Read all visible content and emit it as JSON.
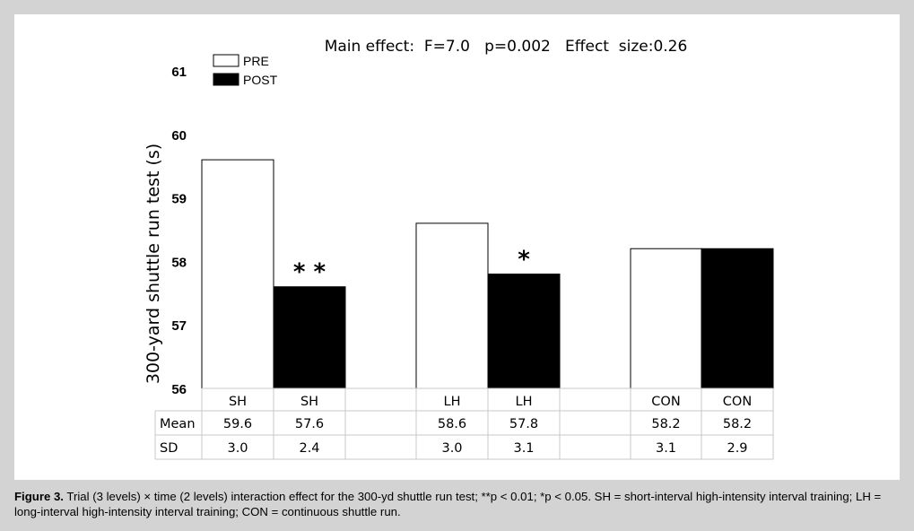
{
  "caption": {
    "label": "Figure 3.",
    "text": "Trial (3 levels) × time (2 levels) interaction effect for the 300-yd shuttle run test; **p < 0.01; *p < 0.05. SH = short-interval high-intensity interval training; LH = long-interval high-intensity interval training; CON = continuous shuttle run."
  },
  "chart_data": {
    "type": "bar",
    "title": "Main effect:  F=7.0   p=0.002   Effect  size:0.26",
    "ylabel": "300-yard shuttle run test (s)",
    "ylim": [
      56,
      61
    ],
    "yticks": [
      "56",
      "57",
      "58",
      "59",
      "60",
      "61"
    ],
    "grid": false,
    "legend_position": "top-left",
    "colors": {
      "PRE": "#ffffff",
      "POST": "#000000"
    },
    "groups": [
      "SH",
      "LH",
      "CON"
    ],
    "series": [
      {
        "name": "PRE",
        "values": [
          59.6,
          58.6,
          58.2
        ]
      },
      {
        "name": "POST",
        "values": [
          57.6,
          57.8,
          58.2
        ]
      }
    ],
    "significance": [
      "* *",
      "*",
      ""
    ],
    "table": {
      "row_labels": [
        "Mean",
        "SD"
      ],
      "columns": [
        {
          "label": "SH",
          "mean": "59.6",
          "sd": "3.0"
        },
        {
          "label": "SH",
          "mean": "57.6",
          "sd": "2.4"
        },
        {
          "label": "LH",
          "mean": "58.6",
          "sd": "3.0"
        },
        {
          "label": "LH",
          "mean": "57.8",
          "sd": "3.1"
        },
        {
          "label": "CON",
          "mean": "58.2",
          "sd": "3.1"
        },
        {
          "label": "CON",
          "mean": "58.2",
          "sd": "2.9"
        }
      ]
    }
  }
}
